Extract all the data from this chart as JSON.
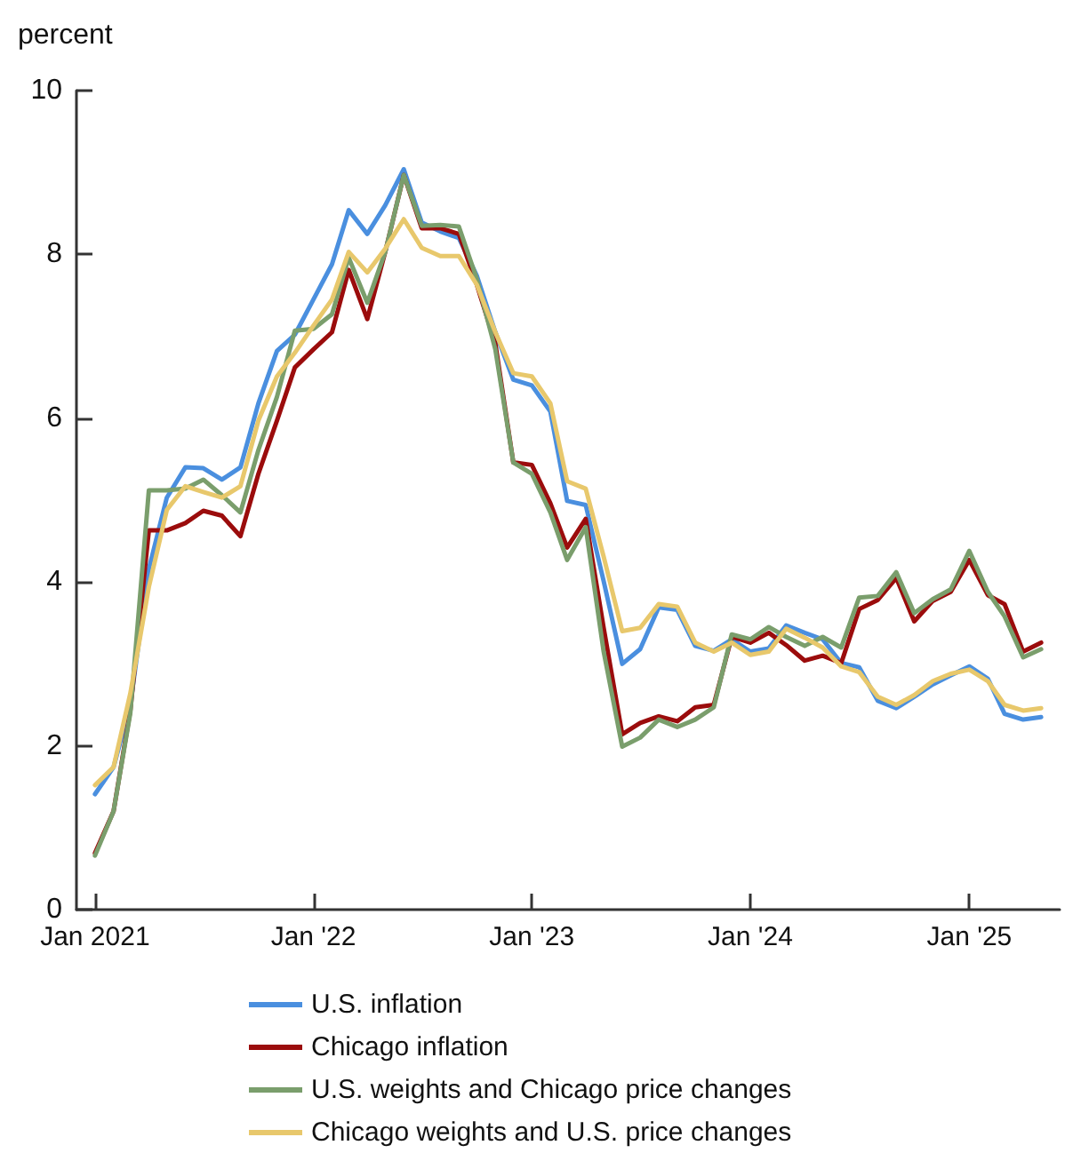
{
  "chart_data": {
    "type": "line",
    "ylabel": "percent",
    "x": [
      "2021-01",
      "2021-02",
      "2021-03",
      "2021-04",
      "2021-05",
      "2021-06",
      "2021-07",
      "2021-08",
      "2021-09",
      "2021-10",
      "2021-11",
      "2021-12",
      "2022-01",
      "2022-02",
      "2022-03",
      "2022-04",
      "2022-05",
      "2022-06",
      "2022-07",
      "2022-08",
      "2022-09",
      "2022-10",
      "2022-11",
      "2022-12",
      "2023-01",
      "2023-02",
      "2023-03",
      "2023-04",
      "2023-05",
      "2023-06",
      "2023-07",
      "2023-08",
      "2023-09",
      "2023-10",
      "2023-11",
      "2023-12",
      "2024-01",
      "2024-02",
      "2024-03",
      "2024-04",
      "2024-05",
      "2024-06",
      "2024-07",
      "2024-08",
      "2024-09",
      "2024-10",
      "2024-11",
      "2024-12",
      "2025-01",
      "2025-02",
      "2025-03",
      "2025-04",
      "2025-05"
    ],
    "series": [
      {
        "name": "U.S. inflation",
        "color": "#4a8fdf",
        "values": [
          1.41,
          1.74,
          2.5,
          4.16,
          5.03,
          5.4,
          5.39,
          5.25,
          5.4,
          6.18,
          6.82,
          7.02,
          7.45,
          7.88,
          8.54,
          8.25,
          8.6,
          9.04,
          8.39,
          8.28,
          8.2,
          7.74,
          7.05,
          6.47,
          6.4,
          6.08,
          4.99,
          4.94,
          4.01,
          3.0,
          3.18,
          3.69,
          3.66,
          3.22,
          3.16,
          3.3,
          3.15,
          3.19,
          3.47,
          3.38,
          3.3,
          3.01,
          2.96,
          2.55,
          2.46,
          2.6,
          2.75,
          2.86,
          2.97,
          2.82,
          2.39,
          2.32,
          2.35
        ]
      },
      {
        "name": "Chicago inflation",
        "color": "#9b0c0c",
        "values": [
          0.69,
          1.2,
          2.43,
          4.63,
          4.63,
          4.72,
          4.87,
          4.81,
          4.56,
          5.32,
          5.97,
          6.62,
          6.84,
          7.05,
          7.81,
          7.21,
          8.03,
          8.97,
          8.32,
          8.32,
          8.25,
          7.63,
          6.91,
          5.46,
          5.43,
          4.96,
          4.42,
          4.77,
          3.44,
          2.14,
          2.28,
          2.36,
          2.3,
          2.47,
          2.5,
          3.33,
          3.26,
          3.38,
          3.23,
          3.04,
          3.1,
          3.01,
          3.67,
          3.78,
          4.05,
          3.52,
          3.77,
          3.88,
          4.27,
          3.84,
          3.73,
          3.15,
          3.26
        ]
      },
      {
        "name": "U.S. weights and Chicago price changes",
        "color": "#7a9e6c",
        "values": [
          0.66,
          1.2,
          2.4,
          5.12,
          5.12,
          5.14,
          5.25,
          5.06,
          4.85,
          5.61,
          6.26,
          7.07,
          7.09,
          7.27,
          7.96,
          7.41,
          8.03,
          8.97,
          8.35,
          8.36,
          8.34,
          7.7,
          6.84,
          5.46,
          5.32,
          4.85,
          4.27,
          4.67,
          3.15,
          1.99,
          2.1,
          2.32,
          2.23,
          2.32,
          2.47,
          3.36,
          3.3,
          3.45,
          3.33,
          3.22,
          3.33,
          3.2,
          3.81,
          3.83,
          4.12,
          3.62,
          3.79,
          3.91,
          4.38,
          3.88,
          3.58,
          3.08,
          3.18
        ]
      },
      {
        "name": "Chicago weights and U.S. price changes",
        "color": "#e8c86c",
        "values": [
          1.52,
          1.74,
          2.64,
          3.94,
          4.88,
          5.17,
          5.1,
          5.03,
          5.17,
          5.97,
          6.51,
          6.8,
          7.13,
          7.45,
          8.03,
          7.78,
          8.07,
          8.43,
          8.08,
          7.98,
          7.98,
          7.63,
          7.05,
          6.55,
          6.51,
          6.18,
          5.23,
          5.14,
          4.31,
          3.4,
          3.44,
          3.73,
          3.7,
          3.26,
          3.15,
          3.26,
          3.11,
          3.15,
          3.43,
          3.32,
          3.2,
          2.97,
          2.9,
          2.6,
          2.5,
          2.62,
          2.79,
          2.88,
          2.93,
          2.79,
          2.5,
          2.43,
          2.46
        ]
      }
    ],
    "xlim": [
      "2020-12",
      "2025-06"
    ],
    "xticks": [
      {
        "value": "2021-01",
        "label": "Jan 2021"
      },
      {
        "value": "2022-01",
        "label": "Jan '22"
      },
      {
        "value": "2023-01",
        "label": "Jan '23"
      },
      {
        "value": "2024-01",
        "label": "Jan '24"
      },
      {
        "value": "2025-01",
        "label": "Jan '25"
      }
    ],
    "ylim": [
      0,
      10
    ],
    "yticks": [
      0,
      2,
      4,
      6,
      8,
      10
    ],
    "grid": false,
    "legend": "bottom",
    "marker": "none",
    "line_style": "solid"
  }
}
